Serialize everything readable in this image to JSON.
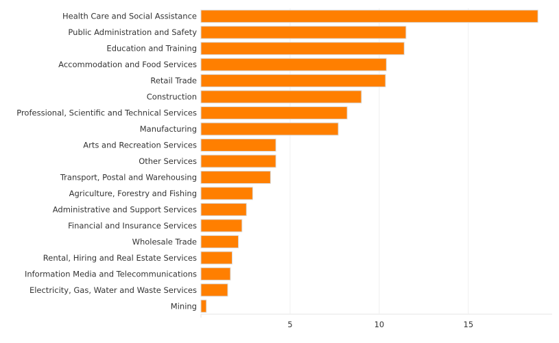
{
  "chart_data": {
    "type": "bar",
    "orientation": "horizontal",
    "title": "",
    "xlabel": "",
    "ylabel": "",
    "xlim": [
      0,
      19.7
    ],
    "xticks": [
      5,
      10,
      15
    ],
    "grid": true,
    "bar_color": "#ff7f00",
    "categories": [
      "Health Care and Social Assistance",
      "Public Administration and Safety",
      "Education and Training",
      "Accommodation and Food Services",
      "Retail Trade",
      "Construction",
      "Professional, Scientific and Technical Services",
      "Manufacturing",
      "Arts and Recreation Services",
      "Other Services",
      "Transport, Postal and Warehousing",
      "Agriculture, Forestry and Fishing",
      "Administrative and Support Services",
      "Financial and Insurance Services",
      "Wholesale Trade",
      "Rental, Hiring and Real Estate Services",
      "Information Media and Telecommunications",
      "Electricity, Gas, Water and Waste Services",
      "Mining"
    ],
    "values": [
      18.9,
      11.5,
      11.4,
      10.4,
      10.35,
      9.0,
      8.2,
      7.7,
      4.2,
      4.2,
      3.9,
      2.9,
      2.55,
      2.3,
      2.1,
      1.75,
      1.65,
      1.5,
      0.3
    ]
  }
}
